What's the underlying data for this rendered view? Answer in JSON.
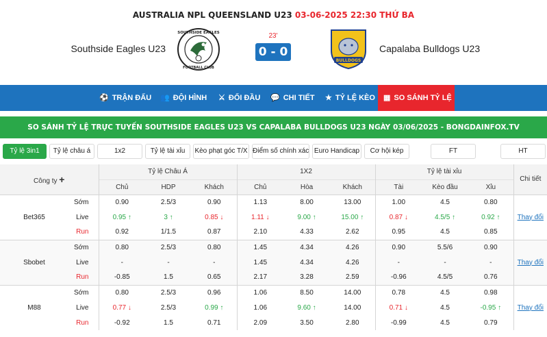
{
  "match": {
    "league": "AUSTRALIA NPL QUEENSLAND U23",
    "datetime": "03-06-2025 22:30 THỨ BA",
    "home_team": "Southside Eagles U23",
    "away_team": "Capalaba Bulldogs U23",
    "minute": "23'",
    "score": "0 - 0",
    "home_logo_text_top": "SOUTHSIDE EAGLES",
    "home_logo_text_bottom": "FOOTBALL CLUB",
    "away_logo_text": "BULLDOGS"
  },
  "nav": {
    "items": [
      {
        "label": "TRẬN ĐẤU",
        "icon": "soccer-ball-icon"
      },
      {
        "label": "ĐỘI HÌNH",
        "icon": "team-icon"
      },
      {
        "label": "ĐỐI ĐẦU",
        "icon": "versus-icon"
      },
      {
        "label": "CHI TIẾT",
        "icon": "chat-icon"
      },
      {
        "label": "TỶ LỆ KÈO",
        "icon": "star-icon"
      },
      {
        "label": "SO SÁNH TỶ LỆ",
        "icon": "compare-icon"
      }
    ]
  },
  "banner": "SO SÁNH TỶ LỆ TRỰC TUYẾN SOUTHSIDE EAGLES U23 VS CAPALABA BULLDOGS U23 NGÀY 03/06/2025 - BONGDAINFOX.TV",
  "filters": [
    "Tỷ lệ 3in1",
    "Tỷ lệ châu á",
    "1x2",
    "Tỷ lệ tài xỉu",
    "Kèo phạt góc T/X",
    "Điểm số chính xác",
    "Euro Handicap",
    "Cơ hội kép",
    "FT",
    "HT"
  ],
  "table": {
    "company_header": "Công ty",
    "group_headers": [
      "Tỷ lệ Châu Á",
      "1X2",
      "Tỷ lệ tài xỉu",
      "Chi tiết"
    ],
    "sub_headers": [
      "Chủ",
      "HDP",
      "Khách",
      "Chủ",
      "Hòa",
      "Khách",
      "Tài",
      "Kèo đầu",
      "Xỉu"
    ],
    "change_label": "Thay đổi",
    "row_labels": [
      "Sớm",
      "Live",
      "Run"
    ],
    "companies": [
      {
        "name": "Bet365",
        "rows": [
          [
            "0.90",
            "2.5/3",
            "0.90",
            "1.13",
            "8.00",
            "13.00",
            "1.00",
            "4.5",
            "0.80"
          ],
          [
            "0.95",
            "3",
            "0.85",
            "1.11",
            "9.00",
            "15.00",
            "0.87",
            "4.5/5",
            "0.92"
          ],
          [
            "0.92",
            "1/1.5",
            "0.87",
            "2.10",
            "4.33",
            "2.62",
            "0.95",
            "4.5",
            "0.85"
          ]
        ]
      },
      {
        "name": "Sbobet",
        "rows": [
          [
            "0.80",
            "2.5/3",
            "0.80",
            "1.45",
            "4.34",
            "4.26",
            "0.90",
            "5.5/6",
            "0.90"
          ],
          [
            "-",
            "-",
            "-",
            "1.45",
            "4.34",
            "4.26",
            "-",
            "-",
            "-"
          ],
          [
            "-0.85",
            "1.5",
            "0.65",
            "2.17",
            "3.28",
            "2.59",
            "-0.96",
            "4.5/5",
            "0.76"
          ]
        ]
      },
      {
        "name": "M88",
        "rows": [
          [
            "0.80",
            "2.5/3",
            "0.96",
            "1.06",
            "8.50",
            "14.00",
            "0.78",
            "4.5",
            "0.98"
          ],
          [
            "0.77",
            "2.5/3",
            "0.99",
            "1.06",
            "9.60",
            "14.00",
            "0.71",
            "4.5",
            "-0.95"
          ],
          [
            "-0.92",
            "1.5",
            "0.71",
            "2.09",
            "3.50",
            "2.80",
            "-0.99",
            "4.5",
            "0.79"
          ]
        ]
      }
    ]
  },
  "colors": {
    "primary_blue": "#1e73be",
    "accent_red": "#e8262d",
    "green": "#2aa849"
  }
}
